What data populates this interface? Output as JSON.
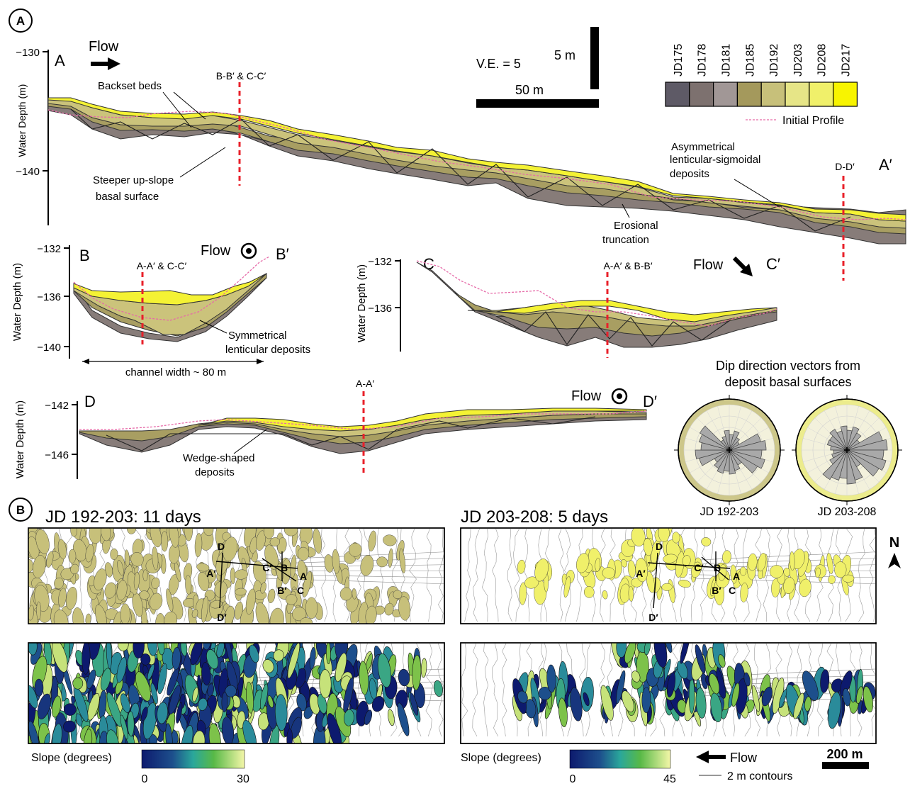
{
  "colors": {
    "JD175": "#5e5a66",
    "JD178": "#7d716f",
    "JD181": "#a19796",
    "JD185": "#a4995c",
    "JD192": "#c7c07a",
    "JD203": "#e6e587",
    "JD208": "#f0f06a",
    "JD217": "#f8f400",
    "initial_profile": "#e66aa8",
    "section_line": "#e8202a",
    "slope_low": "#0d1a6e",
    "slope_mid": "#2aa79b",
    "slope_high": "#f4f7a8"
  },
  "panel_labels": {
    "a": "A",
    "b": "B"
  },
  "legend": {
    "epochs": [
      "JD175",
      "JD178",
      "JD181",
      "JD185",
      "JD192",
      "JD203",
      "JD208",
      "JD217"
    ],
    "initial_profile": "Initial Profile",
    "ve": "V.E. = 5",
    "scale_vertical": "5 m",
    "scale_horizontal": "50 m"
  },
  "section_a": {
    "start_label": "A",
    "end_label": "A′",
    "flow_label": "Flow",
    "ylabel": "Water Depth (m)",
    "yticks": [
      "−130",
      "−140"
    ],
    "crossing_label": "B-B′ & C-C′",
    "crossing_label_2": "D-D′",
    "annotations": {
      "backset": "Backset beds",
      "steeper_1": "Steeper up-slope",
      "steeper_2": "basal surface",
      "asym_1": "Asymmetrical",
      "asym_2": "lenticular-sigmoidal",
      "asym_3": "deposits",
      "erosional_1": "Erosional",
      "erosional_2": "truncation"
    }
  },
  "section_b": {
    "start_label": "B",
    "end_label": "B′",
    "flow_label": "Flow",
    "ylabel": "Water Depth (m)",
    "yticks": [
      "−132",
      "−136",
      "−140"
    ],
    "crossing_label": "A-A′ & C-C′",
    "annotation_1": "Symmetrical",
    "annotation_2": "lenticular deposits",
    "width_label": "channel width ~ 80 m"
  },
  "section_c": {
    "start_label": "C",
    "end_label": "C′",
    "flow_label": "Flow",
    "ylabel": "Water Depth (m)",
    "yticks": [
      "−132",
      "−136"
    ],
    "crossing_label": "A-A′ & B-B′"
  },
  "section_d": {
    "start_label": "D",
    "end_label": "D′",
    "flow_label": "Flow",
    "ylabel": "Water Depth (m)",
    "yticks": [
      "−142",
      "−146"
    ],
    "crossing_label": "A-A′",
    "annotation_1": "Wedge-shaped",
    "annotation_2": "deposits"
  },
  "rose": {
    "title_1": "Dip direction vectors from",
    "title_2": "deposit basal surfaces",
    "labels": [
      "JD 192-203",
      "JD 203-208"
    ]
  },
  "maps": {
    "left_title": "JD 192-203: 11 days",
    "right_title": "JD 203-208: 5 days",
    "section_points": {
      "a": "A",
      "a_prime": "A′",
      "b": "B",
      "b_prime": "B′",
      "c": "C",
      "c_prime": "C′",
      "d": "D",
      "d_prime": "D′"
    },
    "north": "N",
    "slope_label": "Slope (degrees)",
    "left_scale": {
      "min": "0",
      "max": "30"
    },
    "right_scale": {
      "min": "0",
      "max": "45"
    },
    "flow_label": "Flow",
    "contours_label": "2 m contours",
    "scale_bar": "200 m"
  }
}
